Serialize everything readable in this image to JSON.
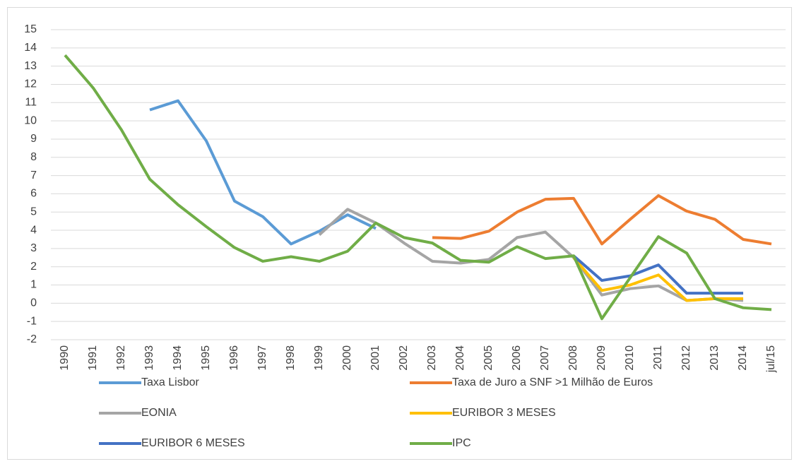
{
  "chart_data": {
    "type": "line",
    "categories": [
      "1990",
      "1991",
      "1992",
      "1993",
      "1994",
      "1995",
      "1996",
      "1997",
      "1998",
      "1999",
      "2000",
      "2001",
      "2002",
      "2003",
      "2004",
      "2005",
      "2006",
      "2007",
      "2008",
      "2009",
      "2010",
      "2011",
      "2012",
      "2013",
      "2014",
      "jul/15"
    ],
    "series": [
      {
        "name": "Taxa Lisbor",
        "color": "#5b9bd5",
        "values": [
          null,
          null,
          null,
          10.6,
          11.1,
          8.9,
          5.6,
          4.75,
          3.25,
          3.95,
          4.85,
          4.1,
          null,
          null,
          null,
          null,
          null,
          null,
          null,
          null,
          null,
          null,
          null,
          null,
          null,
          null
        ]
      },
      {
        "name": "Taxa de Juro a SNF >1 Milhão de Euros",
        "color": "#ed7d31",
        "values": [
          null,
          null,
          null,
          null,
          null,
          null,
          null,
          null,
          null,
          null,
          null,
          null,
          null,
          3.6,
          3.55,
          3.95,
          5.0,
          5.7,
          5.75,
          3.25,
          4.6,
          5.9,
          5.05,
          4.6,
          3.5,
          3.25
        ]
      },
      {
        "name": "EONIA",
        "color": "#a5a5a5",
        "values": [
          null,
          null,
          null,
          null,
          null,
          null,
          null,
          null,
          null,
          3.75,
          5.15,
          4.4,
          3.3,
          2.3,
          2.2,
          2.4,
          3.6,
          3.9,
          2.5,
          0.45,
          0.8,
          0.95,
          0.15,
          0.25,
          0.15,
          null
        ]
      },
      {
        "name": "EURIBOR 3 MESES",
        "color": "#ffc000",
        "values": [
          null,
          null,
          null,
          null,
          null,
          null,
          null,
          null,
          null,
          null,
          null,
          null,
          null,
          null,
          null,
          null,
          null,
          null,
          2.5,
          0.7,
          1.0,
          1.55,
          0.15,
          0.25,
          0.25,
          null
        ]
      },
      {
        "name": "EURIBOR 6 MESES",
        "color": "#4472c4",
        "values": [
          null,
          null,
          null,
          null,
          null,
          null,
          null,
          null,
          null,
          null,
          null,
          null,
          null,
          null,
          null,
          null,
          null,
          null,
          2.6,
          1.25,
          1.5,
          2.1,
          0.55,
          0.55,
          0.55,
          null
        ]
      },
      {
        "name": "IPC",
        "color": "#70ad47",
        "values": [
          13.6,
          11.8,
          9.5,
          6.8,
          5.4,
          4.2,
          3.05,
          2.3,
          2.55,
          2.3,
          2.85,
          4.4,
          3.6,
          3.3,
          2.35,
          2.25,
          3.1,
          2.45,
          2.6,
          -0.85,
          1.4,
          3.65,
          2.75,
          0.25,
          -0.25,
          -0.35
        ]
      }
    ],
    "ylim": [
      -2,
      15
    ],
    "yticks": [
      -2,
      -1,
      0,
      1,
      2,
      3,
      4,
      5,
      6,
      7,
      8,
      9,
      10,
      11,
      12,
      13,
      14,
      15
    ],
    "grid": true,
    "legend": "bottom"
  }
}
